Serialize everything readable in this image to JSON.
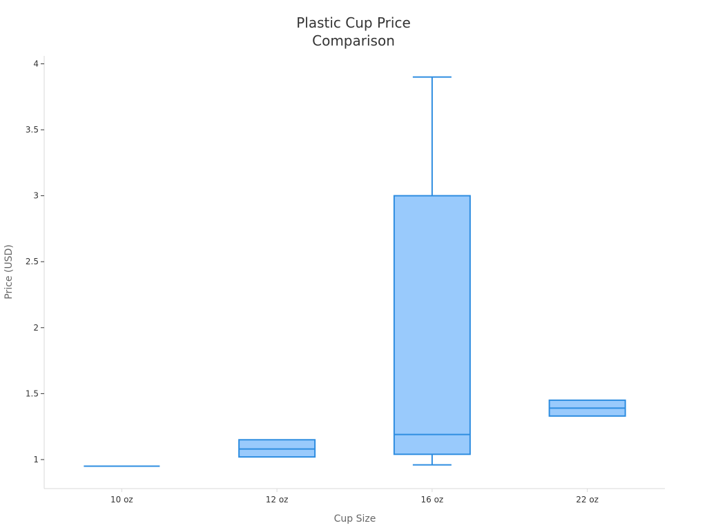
{
  "chart_data": {
    "type": "box",
    "title": "Plastic Cup Price Comparison",
    "title_lines": [
      "Plastic Cup Price",
      "Comparison"
    ],
    "xlabel": "Cup Size",
    "ylabel": "Price (USD)",
    "categories": [
      "10 oz",
      "12 oz",
      "16 oz",
      "22 oz"
    ],
    "ylim": [
      0.78,
      4.06
    ],
    "yticks": [
      1,
      1.5,
      2,
      2.5,
      3,
      3.5,
      4
    ],
    "ytick_labels": [
      "1",
      "1.5",
      "2",
      "2.5",
      "3",
      "3.5",
      "4"
    ],
    "boxes": [
      {
        "category": "10 oz",
        "min": 0.95,
        "q1": 0.95,
        "median": 0.95,
        "q3": 0.95,
        "max": 0.95
      },
      {
        "category": "12 oz",
        "min": 1.02,
        "q1": 1.02,
        "median": 1.08,
        "q3": 1.15,
        "max": 1.15
      },
      {
        "category": "16 oz",
        "min": 0.96,
        "q1": 1.04,
        "median": 1.19,
        "q3": 3.0,
        "max": 3.9
      },
      {
        "category": "22 oz",
        "min": 1.33,
        "q1": 1.33,
        "median": 1.39,
        "q3": 1.45,
        "max": 1.45
      }
    ],
    "grid": false,
    "colors": {
      "box_fill": "#99CAFC",
      "box_stroke": "#2E8DE0",
      "axis": "#D9D9D9",
      "tick": "#333333"
    }
  }
}
